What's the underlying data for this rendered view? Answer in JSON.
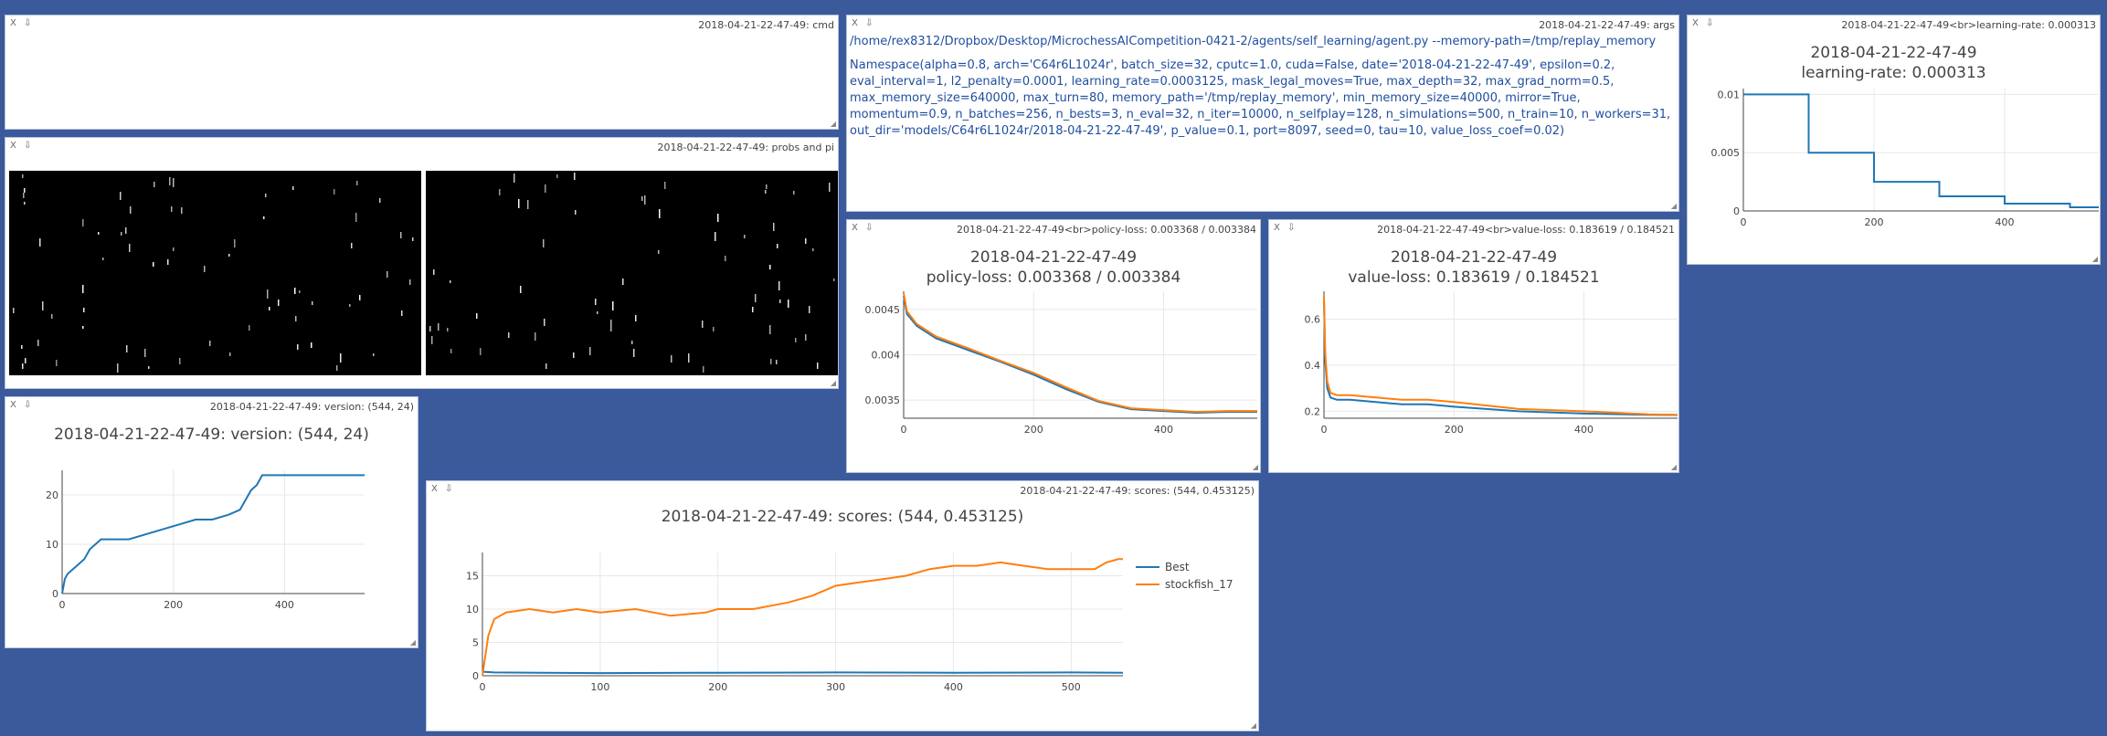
{
  "panes": {
    "cmd": {
      "title": "2018-04-21-22-47-49: cmd"
    },
    "args": {
      "title": "2018-04-21-22-47-49: args",
      "command": "/home/rex8312/Dropbox/Desktop/MicrochessAICompetition-0421-2/agents/self_learning/agent.py --memory-path=/tmp/replay_memory",
      "namespace": "Namespace(alpha=0.8, arch='C64r6L1024r', batch_size=32, cputc=1.0, cuda=False, date='2018-04-21-22-47-49', epsilon=0.2, eval_interval=1, l2_penalty=0.0001, learning_rate=0.0003125, mask_legal_moves=True, max_depth=32, max_grad_norm=0.5, max_memory_size=640000, max_turn=80, memory_path='/tmp/replay_memory', min_memory_size=40000, mirror=True, momentum=0.9, n_batches=256, n_bests=3, n_eval=32, n_iter=10000, n_selfplay=128, n_simulations=500, n_train=10, n_workers=31, out_dir='models/C64r6L1024r/2018-04-21-22-47-49', p_value=0.1, port=8097, seed=0, tau=10, value_loss_coef=0.02)"
    },
    "lr": {
      "title": "2018-04-21-22-47-49<br>learning-rate: 0.000313"
    },
    "probs": {
      "title": "2018-04-21-22-47-49: probs and pi"
    },
    "policy": {
      "title": "2018-04-21-22-47-49<br>policy-loss: 0.003368 / 0.003384"
    },
    "value": {
      "title": "2018-04-21-22-47-49<br>value-loss: 0.183619 / 0.184521"
    },
    "version": {
      "title": "2018-04-21-22-47-49: version: (544, 24)"
    },
    "scores": {
      "title": "2018-04-21-22-47-49: scores: (544, 0.453125)"
    }
  },
  "controls": {
    "close": "X",
    "download": "⇩",
    "resize": "◢"
  },
  "colors": {
    "blue": "#1f77b4",
    "orange": "#ff7f0e"
  },
  "chart_data": [
    {
      "id": "learning_rate",
      "type": "line",
      "title": "2018-04-21-22-47-49",
      "subtitle": "learning-rate: 0.000313",
      "xlim": [
        0,
        544
      ],
      "ylim": [
        0,
        0.0105
      ],
      "xticks": [
        "0",
        "200",
        "400"
      ],
      "xtick_values": [
        0,
        200,
        400
      ],
      "yticks": [
        "0",
        "0.005",
        "0.01"
      ],
      "ytick_values": [
        0,
        0.005,
        0.01
      ],
      "series": [
        {
          "name": "",
          "x": [
            0,
            100,
            100,
            200,
            200,
            300,
            300,
            400,
            400,
            500,
            500,
            544
          ],
          "y": [
            0.01,
            0.01,
            0.005,
            0.005,
            0.0025,
            0.0025,
            0.00125,
            0.00125,
            0.000625,
            0.000625,
            0.000313,
            0.000313
          ]
        }
      ]
    },
    {
      "id": "policy_loss",
      "type": "line",
      "title": "2018-04-21-22-47-49",
      "subtitle": "policy-loss: 0.003368 / 0.003384",
      "xlim": [
        0,
        544
      ],
      "ylim": [
        0.0033,
        0.0047
      ],
      "xticks": [
        "0",
        "200",
        "400"
      ],
      "xtick_values": [
        0,
        200,
        400
      ],
      "yticks": [
        "0.0035",
        "0.004",
        "0.0045"
      ],
      "ytick_values": [
        0.0035,
        0.004,
        0.0045
      ],
      "series": [
        {
          "name": "",
          "x": [
            0,
            5,
            20,
            50,
            100,
            150,
            200,
            250,
            300,
            350,
            400,
            450,
            500,
            544
          ],
          "y": [
            0.00465,
            0.00445,
            0.00432,
            0.00418,
            0.00405,
            0.00392,
            0.00378,
            0.00362,
            0.00348,
            0.0034,
            0.00338,
            0.00336,
            0.00337,
            0.00337
          ]
        },
        {
          "name": "",
          "x": [
            0,
            5,
            20,
            50,
            100,
            150,
            200,
            250,
            300,
            350,
            400,
            450,
            500,
            544
          ],
          "y": [
            0.00468,
            0.00448,
            0.00434,
            0.0042,
            0.00407,
            0.00393,
            0.0038,
            0.00364,
            0.00349,
            0.00341,
            0.00339,
            0.00337,
            0.00338,
            0.00338
          ]
        }
      ]
    },
    {
      "id": "value_loss",
      "type": "line",
      "title": "2018-04-21-22-47-49",
      "subtitle": "value-loss: 0.183619 / 0.184521",
      "xlim": [
        0,
        544
      ],
      "ylim": [
        0.17,
        0.72
      ],
      "xticks": [
        "0",
        "200",
        "400"
      ],
      "xtick_values": [
        0,
        200,
        400
      ],
      "yticks": [
        "0.2",
        "0.4",
        "0.6"
      ],
      "ytick_values": [
        0.2,
        0.4,
        0.6
      ],
      "series": [
        {
          "name": "",
          "x": [
            0,
            2,
            5,
            10,
            20,
            40,
            80,
            120,
            160,
            200,
            300,
            400,
            500,
            544
          ],
          "y": [
            0.68,
            0.42,
            0.3,
            0.26,
            0.25,
            0.25,
            0.24,
            0.23,
            0.23,
            0.22,
            0.2,
            0.19,
            0.185,
            0.184
          ]
        },
        {
          "name": "",
          "x": [
            0,
            2,
            5,
            10,
            20,
            40,
            80,
            120,
            160,
            200,
            300,
            400,
            500,
            544
          ],
          "y": [
            0.7,
            0.45,
            0.33,
            0.28,
            0.27,
            0.27,
            0.26,
            0.25,
            0.25,
            0.24,
            0.21,
            0.2,
            0.187,
            0.185
          ]
        }
      ]
    },
    {
      "id": "version",
      "type": "line",
      "title": "2018-04-21-22-47-49: version: (544, 24)",
      "xlim": [
        0,
        544
      ],
      "ylim": [
        0,
        25
      ],
      "xticks": [
        "0",
        "200",
        "400"
      ],
      "xtick_values": [
        0,
        200,
        400
      ],
      "yticks": [
        "0",
        "10",
        "20"
      ],
      "ytick_values": [
        0,
        10,
        20
      ],
      "series": [
        {
          "name": "",
          "x": [
            0,
            5,
            10,
            20,
            30,
            40,
            50,
            60,
            70,
            90,
            120,
            150,
            180,
            210,
            240,
            270,
            300,
            320,
            330,
            340,
            350,
            360,
            544
          ],
          "y": [
            0,
            3,
            4,
            5,
            6,
            7,
            9,
            10,
            11,
            11,
            11,
            12,
            13,
            14,
            15,
            15,
            16,
            17,
            19,
            21,
            22,
            24,
            24
          ]
        }
      ]
    },
    {
      "id": "scores",
      "type": "line",
      "title": "2018-04-21-22-47-49: scores: (544, 0.453125)",
      "xlim": [
        0,
        544
      ],
      "ylim": [
        0,
        18.5
      ],
      "xticks": [
        "0",
        "100",
        "200",
        "300",
        "400",
        "500"
      ],
      "xtick_values": [
        0,
        100,
        200,
        300,
        400,
        500
      ],
      "yticks": [
        "0",
        "5",
        "10",
        "15"
      ],
      "ytick_values": [
        0,
        5,
        10,
        15
      ],
      "legend_position": "right",
      "series": [
        {
          "name": "Best",
          "x": [
            0,
            10,
            50,
            100,
            200,
            300,
            400,
            500,
            544
          ],
          "y": [
            0.6,
            0.5,
            0.45,
            0.4,
            0.45,
            0.5,
            0.45,
            0.5,
            0.45
          ]
        },
        {
          "name": "stockfish_17",
          "x": [
            0,
            5,
            10,
            20,
            40,
            60,
            80,
            100,
            130,
            160,
            190,
            200,
            230,
            260,
            280,
            300,
            320,
            340,
            360,
            380,
            400,
            420,
            440,
            460,
            480,
            500,
            520,
            530,
            540,
            544
          ],
          "y": [
            0,
            6,
            8.5,
            9.5,
            10,
            9.5,
            10,
            9.5,
            10,
            9,
            9.5,
            10,
            10,
            11,
            12,
            13.5,
            14,
            14.5,
            15,
            16,
            16.5,
            16.5,
            17,
            16.5,
            16,
            16,
            16,
            17,
            17.5,
            17.5
          ]
        }
      ]
    }
  ]
}
